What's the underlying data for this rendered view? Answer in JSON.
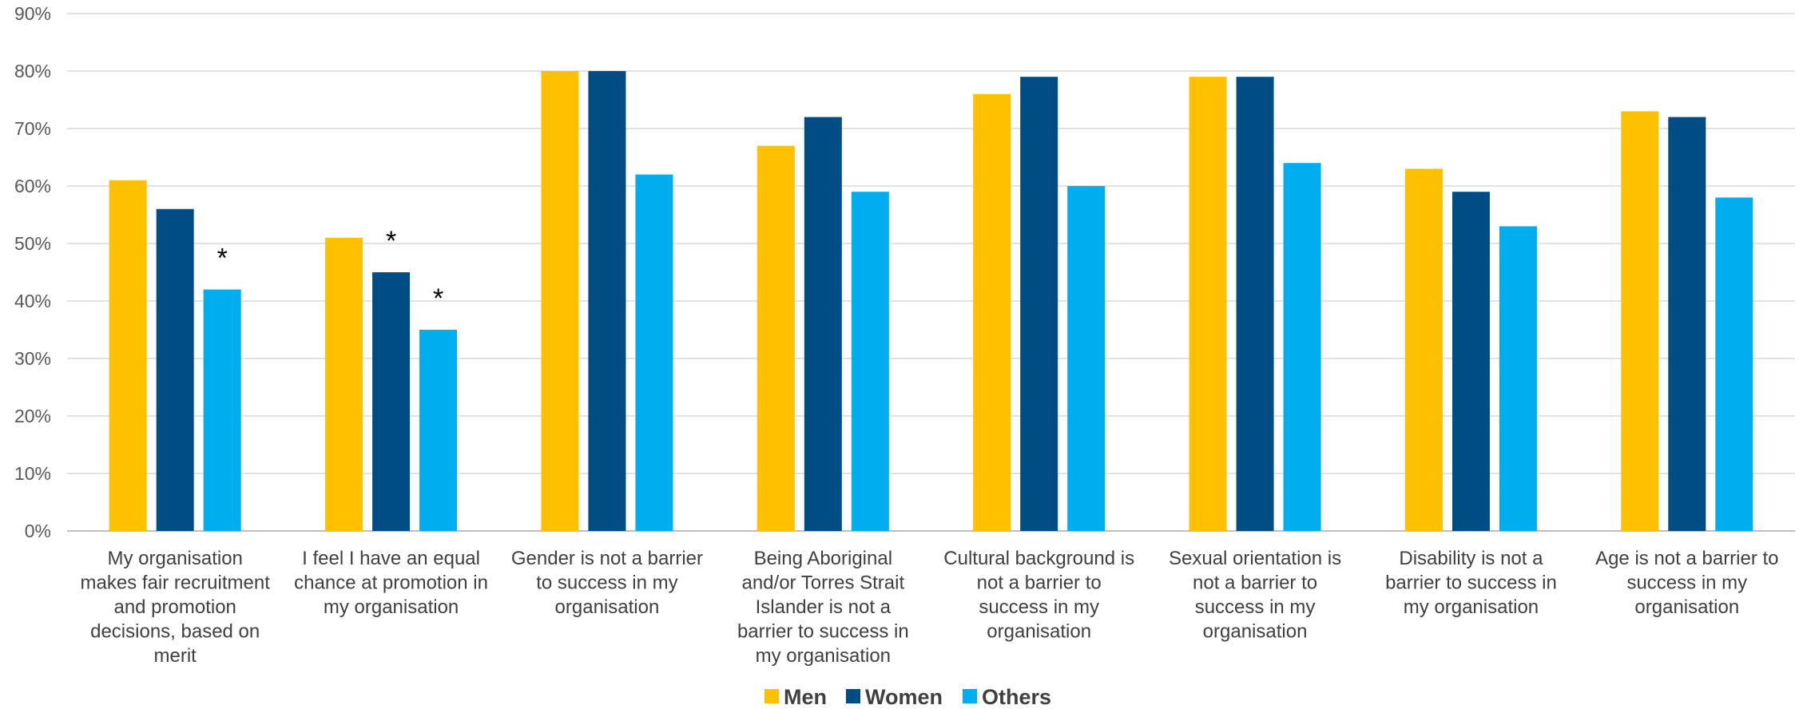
{
  "chart_data": {
    "type": "bar",
    "categories": [
      [
        "My organisation",
        "makes fair recruitment",
        "and promotion",
        "decisions, based on",
        "merit"
      ],
      [
        "I feel I have an equal",
        "chance at promotion in",
        "my organisation"
      ],
      [
        "Gender is not a barrier",
        "to success in my",
        "organisation"
      ],
      [
        "Being Aboriginal",
        "and/or Torres Strait",
        "Islander is not a",
        "barrier to success in",
        "my organisation"
      ],
      [
        "Cultural background is",
        "not a barrier to",
        "success in my",
        "organisation"
      ],
      [
        "Sexual orientation is",
        "not a barrier to",
        "success in my",
        "organisation"
      ],
      [
        "Disability is not a",
        "barrier to success in",
        "my organisation"
      ],
      [
        "Age is not a barrier to",
        "success in my",
        "organisation"
      ]
    ],
    "series": [
      {
        "name": "Men",
        "color": "#FFC000",
        "values": [
          61,
          51,
          80,
          67,
          76,
          79,
          63,
          73
        ]
      },
      {
        "name": "Women",
        "color": "#004C84",
        "values": [
          56,
          45,
          80,
          72,
          79,
          79,
          59,
          72
        ]
      },
      {
        "name": "Others",
        "color": "#00AEEF",
        "values": [
          42,
          35,
          62,
          59,
          60,
          64,
          53,
          58
        ]
      }
    ],
    "annotations": [
      {
        "category": 0,
        "series": 2,
        "text": "*"
      },
      {
        "category": 1,
        "series": 1,
        "text": "*"
      },
      {
        "category": 1,
        "series": 2,
        "text": "*"
      }
    ],
    "ylim": [
      0,
      90
    ],
    "yticks": [
      "0%",
      "10%",
      "20%",
      "30%",
      "40%",
      "50%",
      "60%",
      "70%",
      "80%",
      "90%"
    ],
    "xlabel": "",
    "ylabel": "",
    "grid": true,
    "legend_position": "bottom"
  }
}
